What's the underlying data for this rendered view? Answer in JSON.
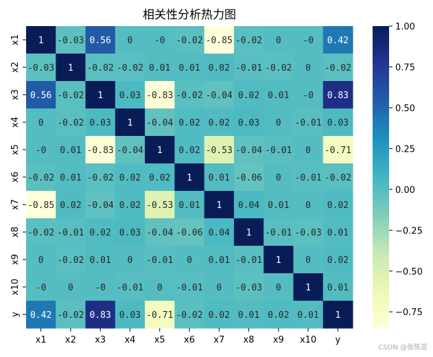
{
  "chart_data": {
    "type": "heatmap",
    "title": "相关性分析热力图",
    "labels": [
      "x1",
      "x2",
      "x3",
      "x4",
      "x5",
      "x6",
      "x7",
      "x8",
      "x9",
      "x10",
      "y"
    ],
    "matrix": [
      [
        1,
        -0.03,
        0.56,
        0,
        0,
        -0.02,
        -0.85,
        -0.02,
        0,
        0,
        0.42
      ],
      [
        -0.03,
        1,
        -0.02,
        -0.02,
        0.01,
        0.01,
        0.02,
        -0.01,
        -0.02,
        0,
        -0.02
      ],
      [
        0.56,
        -0.02,
        1,
        0.03,
        -0.83,
        -0.02,
        -0.04,
        0.02,
        0.01,
        0,
        0.83
      ],
      [
        0,
        -0.02,
        0.03,
        1,
        -0.04,
        0.02,
        0.02,
        0.03,
        0,
        -0.01,
        0.03
      ],
      [
        0,
        0.01,
        -0.83,
        -0.04,
        1,
        0.02,
        -0.53,
        -0.04,
        -0.01,
        0,
        -0.71
      ],
      [
        -0.02,
        0.01,
        -0.02,
        0.02,
        0.02,
        1,
        0.01,
        -0.06,
        0,
        -0.01,
        -0.02
      ],
      [
        -0.85,
        0.02,
        -0.04,
        0.02,
        -0.53,
        0.01,
        1,
        0.04,
        0.01,
        0,
        0.02
      ],
      [
        -0.02,
        -0.01,
        0.02,
        0.03,
        -0.04,
        -0.06,
        0.04,
        1,
        -0.01,
        -0.03,
        0.01
      ],
      [
        0,
        -0.02,
        0.01,
        0,
        -0.01,
        0,
        0.01,
        -0.01,
        1,
        0,
        0.02
      ],
      [
        0,
        0,
        0,
        -0.01,
        0,
        -0.01,
        0,
        -0.03,
        0,
        1,
        0.01
      ],
      [
        0.42,
        -0.02,
        0.83,
        0.03,
        -0.71,
        -0.02,
        0.02,
        0.01,
        0.02,
        0.01,
        1
      ]
    ],
    "display": [
      [
        "1",
        "-0.03",
        "0.56",
        "0",
        "-0",
        "-0.02",
        "-0.85",
        "-0.02",
        "0",
        "-0",
        "0.42"
      ],
      [
        "-0.03",
        "1",
        "-0.02",
        "-0.02",
        "0.01",
        "0.01",
        "0.02",
        "-0.01",
        "-0.02",
        "0",
        "-0.02"
      ],
      [
        "0.56",
        "-0.02",
        "1",
        "0.03",
        "-0.83",
        "-0.02",
        "-0.04",
        "0.02",
        "0.01",
        "-0",
        "0.83"
      ],
      [
        "0",
        "-0.02",
        "0.03",
        "1",
        "-0.04",
        "0.02",
        "0.02",
        "0.03",
        "0",
        "-0.01",
        "0.03"
      ],
      [
        "-0",
        "0.01",
        "-0.83",
        "-0.04",
        "1",
        "0.02",
        "-0.53",
        "-0.04",
        "-0.01",
        "0",
        "-0.71"
      ],
      [
        "-0.02",
        "0.01",
        "-0.02",
        "0.02",
        "0.02",
        "1",
        "0.01",
        "-0.06",
        "0",
        "-0.01",
        "-0.02"
      ],
      [
        "-0.85",
        "0.02",
        "-0.04",
        "0.02",
        "-0.53",
        "0.01",
        "1",
        "0.04",
        "0.01",
        "0",
        "0.02"
      ],
      [
        "-0.02",
        "-0.01",
        "0.02",
        "0.03",
        "-0.04",
        "-0.06",
        "0.04",
        "1",
        "-0.01",
        "-0.03",
        "0.01"
      ],
      [
        "0",
        "-0.02",
        "0.01",
        "0",
        "-0.01",
        "0",
        "0.01",
        "-0.01",
        "1",
        "0",
        "0.02"
      ],
      [
        "-0",
        "0",
        "-0",
        "-0.01",
        "0",
        "-0.01",
        "0",
        "-0.03",
        "0",
        "1",
        "0.01"
      ],
      [
        "0.42",
        "-0.02",
        "0.83",
        "0.03",
        "-0.71",
        "-0.02",
        "0.02",
        "0.01",
        "0.02",
        "0.01",
        "1"
      ]
    ],
    "colorbar": {
      "range": [
        -0.85,
        1.0
      ],
      "ticks": [
        1.0,
        0.75,
        0.5,
        0.25,
        0.0,
        -0.25,
        -0.5,
        -0.75
      ],
      "tick_labels": [
        "1.00",
        "0.75",
        "0.50",
        "0.25",
        "0.00",
        "−0.25",
        "−0.50",
        "−0.75"
      ]
    },
    "colormap": "YlGnBu",
    "colormap_stops": [
      "#ffffd9",
      "#edf8b1",
      "#c7e9b4",
      "#7fcdbb",
      "#41b6c4",
      "#1d91c0",
      "#225ea8",
      "#253494",
      "#081d58"
    ]
  },
  "watermark": "CSDN @张陈亚"
}
